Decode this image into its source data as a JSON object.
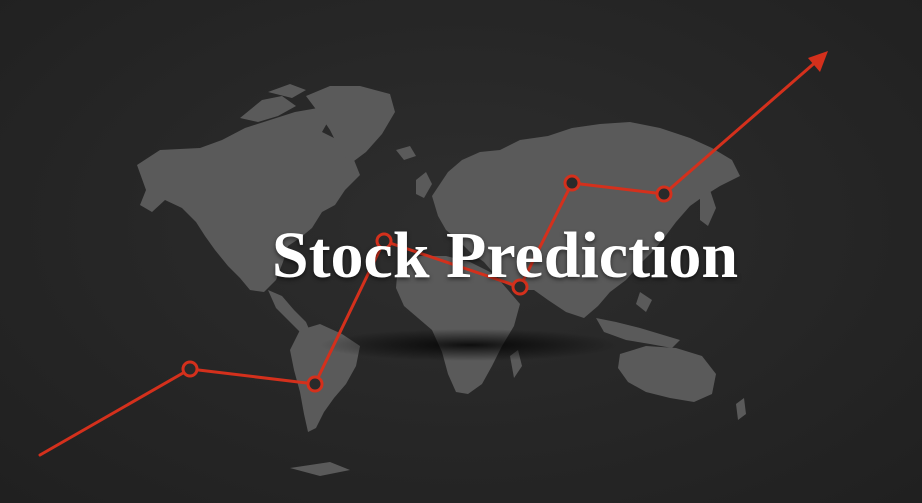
{
  "title": "Stock Prediction",
  "colors": {
    "background": "#252525",
    "map": "#5a5a5a",
    "trend_line": "#d4301c",
    "title": "#ffffff"
  },
  "icons": [
    "world-map",
    "trend-arrow"
  ]
}
